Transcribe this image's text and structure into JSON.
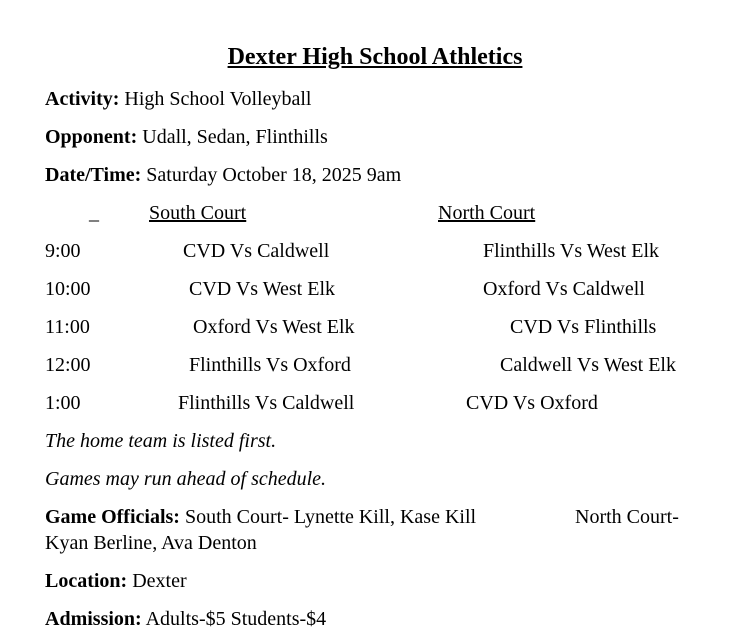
{
  "title": "Dexter High School Athletics",
  "activity": {
    "label": "Activity:",
    "value": "High School Volleyball"
  },
  "opponent": {
    "label": "Opponent:",
    "value": "Udall, Sedan, Flinthills"
  },
  "datetime": {
    "label": "Date/Time:",
    "value": "Saturday October 18, 2025 9am"
  },
  "schedule": {
    "blank_header": "_",
    "south_header": "South Court",
    "north_header": "North Court",
    "rows": [
      {
        "time": "9:00",
        "south": "CVD Vs Caldwell",
        "north": "Flinthills Vs West Elk"
      },
      {
        "time": "10:00",
        "south": "CVD Vs West Elk",
        "north": "Oxford Vs Caldwell"
      },
      {
        "time": "11:00",
        "south": "Oxford Vs West Elk",
        "north": "CVD Vs Flinthills"
      },
      {
        "time": "12:00",
        "south": "Flinthills Vs Oxford",
        "north": "Caldwell Vs West Elk"
      },
      {
        "time": "1:00",
        "south": "Flinthills Vs Caldwell",
        "north": "CVD Vs Oxford"
      }
    ]
  },
  "notes": [
    "The home team is listed first.",
    "Games may run ahead of schedule."
  ],
  "officials": {
    "label": "Game Officials:",
    "south": "South Court- Lynette Kill, Kase Kill",
    "north": "North Court-",
    "north_names": "Kyan Berline, Ava Denton"
  },
  "location": {
    "label": "Location:",
    "value": "Dexter"
  },
  "admission": {
    "label": "Admission:",
    "value": "Adults-$5 Students-$4"
  }
}
